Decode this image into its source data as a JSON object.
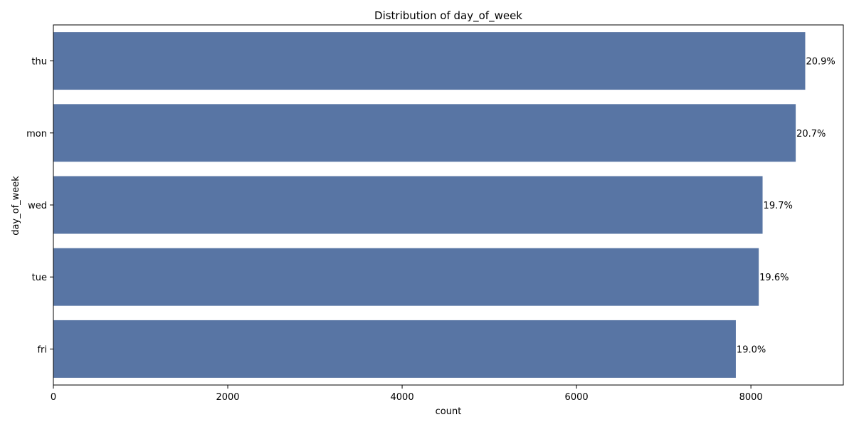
{
  "chart_data": {
    "type": "bar",
    "orientation": "horizontal",
    "title": "Distribution of day_of_week",
    "xlabel": "count",
    "ylabel": "day_of_week",
    "categories": [
      "thu",
      "mon",
      "wed",
      "tue",
      "fri"
    ],
    "values": [
      8623,
      8514,
      8134,
      8090,
      7827
    ],
    "data_labels": [
      "20.9%",
      "20.7%",
      "19.7%",
      "19.6%",
      "19.0%"
    ],
    "xlim": [
      0,
      9060
    ],
    "xticks": [
      0,
      2000,
      4000,
      6000,
      8000
    ],
    "xtick_labels": [
      "0",
      "2000",
      "4000",
      "6000",
      "8000"
    ],
    "grid": false,
    "bar_color": "#5875a4"
  }
}
